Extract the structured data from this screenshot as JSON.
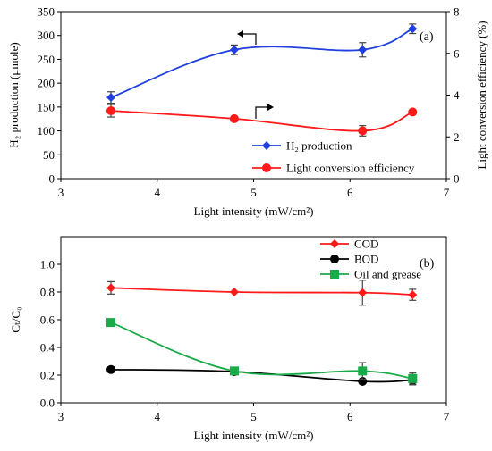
{
  "chart_data": [
    {
      "type": "line",
      "panel_label": "(a)",
      "xlabel": "Light intensity (mW/cm²)",
      "ylabel": "H₂ production (μmole)",
      "y2label": "Light conversion efficiency (%)",
      "xlim": [
        3,
        7
      ],
      "ylim": [
        0,
        350
      ],
      "y2lim": [
        0,
        8
      ],
      "xticks": [
        "3",
        "4",
        "5",
        "6",
        "7"
      ],
      "yticks": [
        "0",
        "50",
        "100",
        "150",
        "200",
        "250",
        "300",
        "350"
      ],
      "y2ticks": [
        "0",
        "2",
        "4",
        "6",
        "8"
      ],
      "legend_position": "bottom-right",
      "series": [
        {
          "name": "H₂ production",
          "axis": "left",
          "color": "#1f3fe0",
          "marker": "diamond",
          "x": [
            3.52,
            4.8,
            6.13,
            6.65
          ],
          "y": [
            170,
            270,
            270,
            314
          ],
          "err": [
            12,
            10,
            15,
            10
          ]
        },
        {
          "name": "Light conversion efficiency",
          "axis": "right",
          "color": "#ff1a1a",
          "marker": "circle",
          "x": [
            3.52,
            4.8,
            6.13,
            6.65
          ],
          "y": [
            3.25,
            2.87,
            2.29,
            3.19
          ],
          "err": [
            0.3,
            0.12,
            0.25,
            0.08
          ]
        }
      ]
    },
    {
      "type": "line",
      "panel_label": "(b)",
      "xlabel": "Light intensity (mW/cm²)",
      "ylabel": "Cₜ/C₀",
      "xlim": [
        3,
        7
      ],
      "ylim": [
        0,
        1.2
      ],
      "xticks": [
        "3",
        "4",
        "5",
        "6",
        "7"
      ],
      "yticks": [
        "0.0",
        "0.2",
        "0.4",
        "0.6",
        "0.8",
        "1.0"
      ],
      "legend_position": "top-right",
      "series": [
        {
          "name": "COD",
          "color": "#ff1a1a",
          "marker": "diamond",
          "x": [
            3.52,
            4.8,
            6.13,
            6.65
          ],
          "y": [
            0.83,
            0.8,
            0.795,
            0.78
          ],
          "err": [
            0.045,
            0.0,
            0.09,
            0.04
          ]
        },
        {
          "name": "BOD",
          "color": "#000000",
          "marker": "circle",
          "x": [
            3.52,
            4.8,
            6.13,
            6.65
          ],
          "y": [
            0.24,
            0.225,
            0.155,
            0.165
          ],
          "err": [
            0.02,
            0.0,
            0.0,
            0.035
          ]
        },
        {
          "name": "Oil and grease",
          "color": "#1aaa4a",
          "marker": "square",
          "x": [
            3.52,
            4.8,
            6.13,
            6.65
          ],
          "y": [
            0.58,
            0.23,
            0.23,
            0.175
          ],
          "err": [
            0.0,
            0.0,
            0.06,
            0.04
          ]
        }
      ]
    }
  ]
}
